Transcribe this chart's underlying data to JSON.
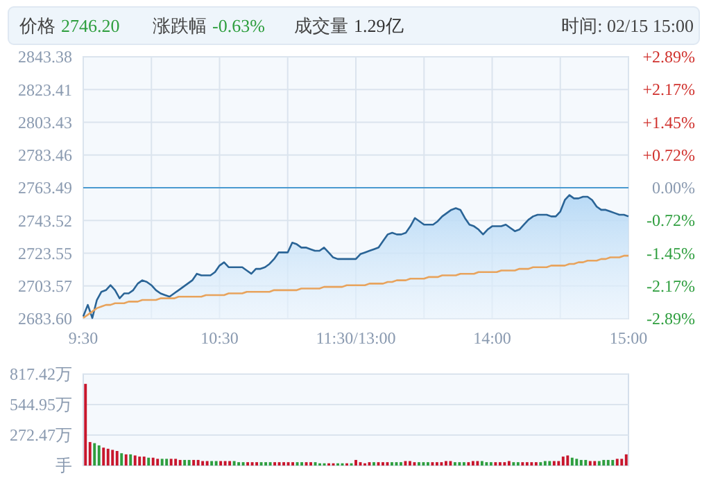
{
  "chart_data": [
    {
      "type": "line",
      "annotations": [
        "价格 2746.20",
        "涨跌幅 -0.63%",
        "成交量 1.29亿",
        "时间: 02/15 15:00"
      ],
      "categories": [
        "9:30",
        null,
        null,
        null,
        null,
        null,
        null,
        null,
        null,
        null,
        null,
        null,
        null,
        null,
        null,
        null,
        null,
        null,
        null,
        null,
        null,
        null,
        null,
        null,
        null,
        null,
        null,
        null,
        null,
        null,
        "10:30",
        null,
        null,
        null,
        null,
        null,
        null,
        null,
        null,
        null,
        null,
        null,
        null,
        null,
        null,
        null,
        null,
        null,
        null,
        null,
        null,
        null,
        null,
        null,
        null,
        null,
        null,
        null,
        null,
        null,
        "11:30/13:00",
        null,
        null,
        null,
        null,
        null,
        null,
        null,
        null,
        null,
        null,
        null,
        null,
        null,
        null,
        null,
        null,
        null,
        null,
        null,
        null,
        null,
        null,
        null,
        null,
        null,
        null,
        null,
        null,
        null,
        "14:00",
        null,
        null,
        null,
        null,
        null,
        null,
        null,
        null,
        null,
        null,
        null,
        null,
        null,
        null,
        null,
        null,
        null,
        null,
        null,
        null,
        null,
        null,
        null,
        null,
        null,
        null,
        null,
        null,
        null,
        "15:00"
      ],
      "ylim": [
        2683.6,
        2843.38
      ],
      "yticks": [
        {
          "value": 2683.6,
          "label": "2683.60"
        },
        2703.57,
        2723.55,
        2743.52,
        2763.49,
        2783.46,
        2803.43,
        2823.41,
        2843.38
      ],
      "y2lim": [
        -2.89,
        2.89
      ],
      "y2ticks": [
        {
          "value": -2.89,
          "label": "-2.89%"
        },
        {
          "value": -2.17,
          "label": "-2.17%"
        },
        {
          "value": -1.45,
          "label": "-1.45%"
        },
        {
          "value": -0.72,
          "label": "-0.72%"
        },
        {
          "value": 0,
          "label": "0.00%"
        },
        {
          "value": 0.72,
          "label": "+0.72%"
        },
        {
          "value": 1.45,
          "label": "+1.45%"
        },
        {
          "value": 2.17,
          "label": "+2.17%"
        },
        {
          "value": 2.89,
          "label": "+2.89%"
        }
      ],
      "grid": true,
      "ref_lines": [
        {
          "axis": "y",
          "value": 2763.49,
          "color": "#4a9ad0"
        }
      ],
      "series": [
        {
          "type": "area",
          "color": "#2a6496",
          "values": [
            2685,
            2692,
            2684,
            2695,
            2700,
            2701,
            2704,
            2701,
            2696,
            2699,
            2699,
            2701,
            2705,
            2707,
            2706,
            2704,
            2701,
            2699,
            2698,
            2697,
            2699,
            2701,
            2703,
            2705,
            2707,
            2711,
            2710,
            2710,
            2710,
            2712,
            2716,
            2718,
            2715,
            2715,
            2715,
            2715,
            2713,
            2711,
            2714,
            2714,
            2715,
            2717,
            2720,
            2724,
            2724,
            2724,
            2730,
            2729,
            2727,
            2727,
            2726,
            2725,
            2725,
            2727,
            2724,
            2721,
            2720,
            2720,
            2720,
            2720,
            2720,
            2723,
            2724,
            2725,
            2726,
            2727,
            2731,
            2735,
            2736,
            2735,
            2735,
            2736,
            2740,
            2745,
            2743,
            2741,
            2741,
            2741,
            2743,
            2746,
            2748,
            2750,
            2751,
            2750,
            2745,
            2741,
            2740,
            2738,
            2735,
            2738,
            2740,
            2740,
            2740,
            2741,
            2739,
            2737,
            2738,
            2741,
            2744,
            2746,
            2747,
            2747,
            2747,
            2746,
            2746,
            2749,
            2756,
            2759,
            2757,
            2757,
            2758,
            2758,
            2756,
            2752,
            2750,
            2750,
            2749,
            2748,
            2747,
            2747,
            2746
          ]
        },
        {
          "color": "#e8a35c",
          "values": [
            2684,
            2686,
            2688,
            2690,
            2691,
            2692,
            2692,
            2693,
            2693,
            2693,
            2694,
            2694,
            2694,
            2695,
            2695,
            2695,
            2695,
            2696,
            2696,
            2696,
            2696,
            2697,
            2697,
            2697,
            2697,
            2697,
            2697,
            2698,
            2698,
            2698,
            2698,
            2698,
            2699,
            2699,
            2699,
            2699,
            2700,
            2700,
            2700,
            2700,
            2700,
            2700,
            2701,
            2701,
            2701,
            2701,
            2701,
            2701,
            2702,
            2702,
            2702,
            2702,
            2702,
            2703,
            2703,
            2703,
            2703,
            2703,
            2704,
            2704,
            2704,
            2704,
            2704,
            2705,
            2705,
            2705,
            2705,
            2706,
            2706,
            2707,
            2707,
            2707,
            2708,
            2708,
            2708,
            2708,
            2709,
            2709,
            2709,
            2710,
            2710,
            2710,
            2710,
            2711,
            2711,
            2711,
            2711,
            2712,
            2712,
            2712,
            2712,
            2712,
            2713,
            2713,
            2713,
            2713,
            2714,
            2714,
            2714,
            2715,
            2715,
            2715,
            2715,
            2716,
            2716,
            2716,
            2716,
            2717,
            2717,
            2718,
            2718,
            2719,
            2719,
            2719,
            2720,
            2720,
            2721,
            2721,
            2721,
            2722,
            2722
          ]
        }
      ]
    },
    {
      "type": "bar",
      "tick_labels": "y",
      "grid": "y",
      "categories": [
        null,
        null,
        null,
        null,
        null,
        null,
        null,
        null,
        null,
        null,
        null,
        null,
        null,
        null,
        null,
        null,
        null,
        null,
        null,
        null,
        null,
        null,
        null,
        null,
        null,
        null,
        null,
        null,
        null,
        null,
        null,
        null,
        null,
        null,
        null,
        null,
        null,
        null,
        null,
        null,
        null,
        null,
        null,
        null,
        null,
        null,
        null,
        null,
        null,
        null,
        null,
        null,
        null,
        null,
        null,
        null,
        null,
        null,
        null,
        null,
        null,
        null,
        null,
        null,
        null,
        null,
        null,
        null,
        null,
        null,
        null,
        null,
        null,
        null,
        null,
        null,
        null,
        null,
        null,
        null,
        null,
        null,
        null,
        null,
        null,
        null,
        null,
        null,
        null,
        null,
        null,
        null,
        null,
        null,
        null,
        null,
        null,
        null,
        null,
        null,
        null,
        null,
        null,
        null,
        null,
        null,
        null,
        null,
        null,
        null,
        null,
        null,
        null,
        null,
        null,
        null,
        null,
        null,
        null,
        null,
        null
      ],
      "values": [
        730,
        210,
        200,
        180,
        160,
        150,
        140,
        130,
        110,
        100,
        100,
        90,
        80,
        80,
        70,
        70,
        60,
        60,
        60,
        60,
        60,
        50,
        50,
        50,
        50,
        50,
        40,
        40,
        40,
        40,
        40,
        40,
        40,
        40,
        30,
        30,
        30,
        30,
        30,
        30,
        30,
        30,
        30,
        30,
        30,
        30,
        30,
        30,
        30,
        30,
        30,
        30,
        20,
        20,
        20,
        20,
        20,
        20,
        20,
        20,
        50,
        30,
        20,
        30,
        30,
        30,
        30,
        30,
        30,
        30,
        30,
        40,
        40,
        30,
        30,
        30,
        30,
        30,
        30,
        30,
        40,
        40,
        30,
        30,
        30,
        30,
        40,
        40,
        40,
        30,
        30,
        30,
        30,
        30,
        40,
        30,
        30,
        30,
        30,
        30,
        30,
        30,
        40,
        40,
        40,
        40,
        80,
        90,
        70,
        60,
        50,
        50,
        40,
        40,
        40,
        50,
        50,
        50,
        60,
        60,
        100
      ],
      "colors": [
        "#c8162c",
        "#c8162c",
        "#2e9e3e",
        "#2e9e3e",
        "#c8162c",
        "#c8162c",
        "#c8162c",
        "#c8162c",
        "#2e9e3e",
        "#c8162c",
        "#2e9e3e",
        "#c8162c",
        "#c8162c",
        "#c8162c",
        "#2e9e3e",
        "#c8162c",
        "#c8162c",
        "#2e9e3e",
        "#2e9e3e",
        "#c8162c",
        "#c8162c",
        "#c8162c",
        "#2e9e3e",
        "#2e9e3e",
        "#c8162c",
        "#c8162c",
        "#c8162c",
        "#c8162c",
        "#2e9e3e",
        "#2e9e3e",
        "#c8162c",
        "#c8162c",
        "#c8162c",
        "#2e9e3e",
        "#2e9e3e",
        "#2e9e3e",
        "#c8162c",
        "#c8162c",
        "#c8162c",
        "#2e9e3e",
        "#2e9e3e",
        "#2e9e3e",
        "#c8162c",
        "#c8162c",
        "#c8162c",
        "#c8162c",
        "#c8162c",
        "#2e9e3e",
        "#2e9e3e",
        "#c8162c",
        "#c8162c",
        "#2e9e3e",
        "#2e9e3e",
        "#2e9e3e",
        "#c8162c",
        "#c8162c",
        "#2e9e3e",
        "#2e9e3e",
        "#c8162c",
        "#2e9e3e",
        "#c8162c",
        "#c8162c",
        "#c8162c",
        "#c8162c",
        "#2e9e3e",
        "#c8162c",
        "#c8162c",
        "#c8162c",
        "#2e9e3e",
        "#2e9e3e",
        "#2e9e3e",
        "#c8162c",
        "#c8162c",
        "#c8162c",
        "#2e9e3e",
        "#2e9e3e",
        "#2e9e3e",
        "#c8162c",
        "#c8162c",
        "#c8162c",
        "#c8162c",
        "#c8162c",
        "#2e9e3e",
        "#2e9e3e",
        "#2e9e3e",
        "#c8162c",
        "#c8162c",
        "#c8162c",
        "#2e9e3e",
        "#2e9e3e",
        "#2e9e3e",
        "#c8162c",
        "#c8162c",
        "#c8162c",
        "#c8162c",
        "#2e9e3e",
        "#2e9e3e",
        "#c8162c",
        "#c8162c",
        "#c8162c",
        "#c8162c",
        "#2e9e3e",
        "#2e9e3e",
        "#2e9e3e",
        "#c8162c",
        "#c8162c",
        "#c8162c",
        "#c8162c",
        "#2e9e3e",
        "#2e9e3e",
        "#2e9e3e",
        "#2e9e3e",
        "#c8162c",
        "#c8162c",
        "#2e9e3e",
        "#2e9e3e",
        "#2e9e3e",
        "#2e9e3e",
        "#c8162c",
        "#c8162c",
        "#c8162c"
      ],
      "ylim": [
        0,
        817.42
      ],
      "yticks": [
        {
          "value": 0,
          "label": "手"
        },
        {
          "value": 272.47,
          "label": "272.47万"
        },
        {
          "value": 544.95,
          "label": "544.95万"
        },
        {
          "value": 817.42,
          "label": "817.42万"
        }
      ]
    }
  ]
}
